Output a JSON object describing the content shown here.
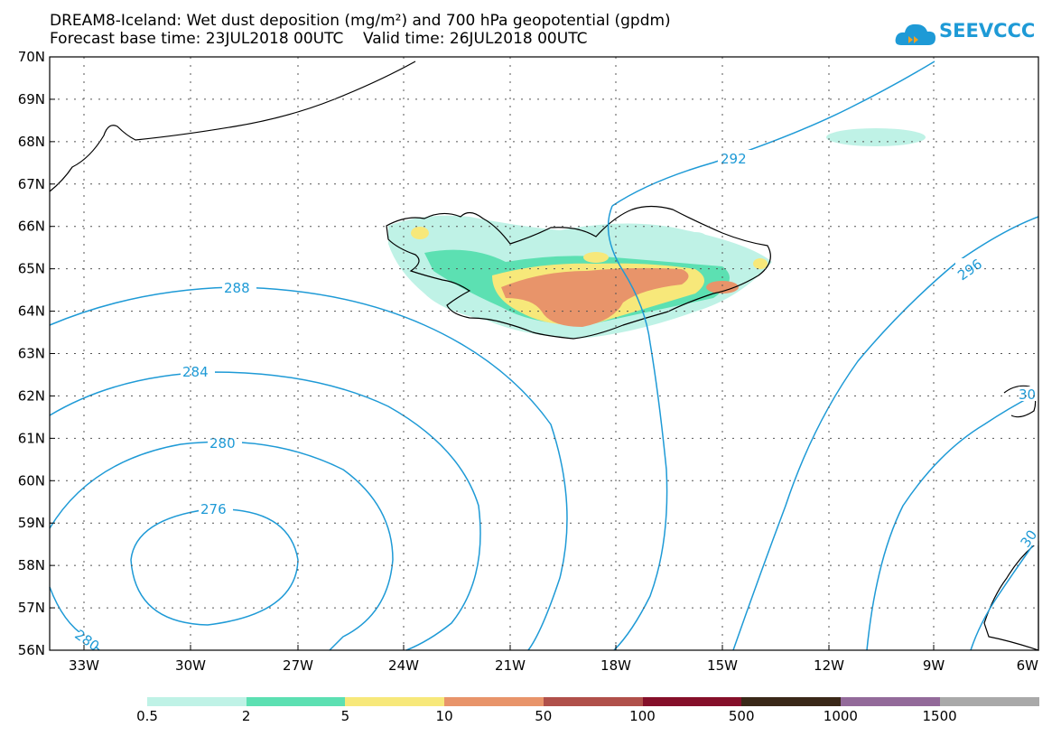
{
  "title_line1": "DREAM8-Iceland: Wet dust deposition (mg/m²) and 700 hPa geopotential (gpdm)",
  "title_line2": "Forecast base time: 23JUL2018 00UTC    Valid time: 26JUL2018 00UTC",
  "logo_text": "SEEVCCC",
  "map": {
    "lat_labels": [
      "70N",
      "69N",
      "68N",
      "67N",
      "66N",
      "65N",
      "64N",
      "63N",
      "62N",
      "61N",
      "60N",
      "59N",
      "58N",
      "57N",
      "56N"
    ],
    "lon_labels": [
      "33W",
      "30W",
      "27W",
      "24W",
      "21W",
      "18W",
      "15W",
      "12W",
      "9W",
      "6W"
    ],
    "contour_labels": [
      "292",
      "296",
      "288",
      "284",
      "280",
      "276",
      "280",
      "30",
      "30"
    ],
    "contour_color": "#1e9ad6"
  },
  "legend": {
    "colors": [
      "#bff2e6",
      "#5ce0b2",
      "#f7e87a",
      "#e8946a",
      "#b0504a",
      "#85102a",
      "#3a2818",
      "#936a9a",
      "#a9a9a9"
    ],
    "labels": [
      "0.5",
      "2",
      "5",
      "10",
      "50",
      "100",
      "500",
      "1000",
      "1500"
    ]
  }
}
